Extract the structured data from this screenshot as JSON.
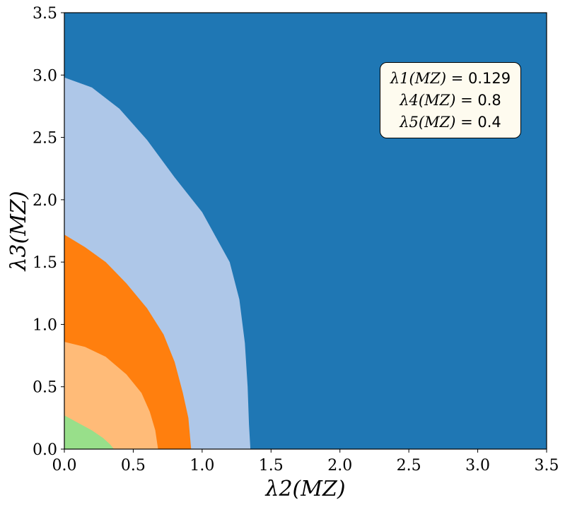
{
  "chart_data": {
    "type": "area",
    "xlabel": "λ2(MZ)",
    "ylabel": "λ3(MZ)",
    "xlim": [
      0,
      3.5
    ],
    "ylim": [
      0,
      3.5
    ],
    "x_ticks": [
      "0.0",
      "0.5",
      "1.0",
      "1.5",
      "2.0",
      "2.5",
      "3.0",
      "3.5"
    ],
    "y_ticks": [
      "0.0",
      "0.5",
      "1.0",
      "1.5",
      "2.0",
      "2.5",
      "3.0",
      "3.5"
    ],
    "grid": false,
    "background_color": "#1f77b4",
    "regions": [
      {
        "color": "#aec7e8",
        "boundary": [
          [
            0,
            2.98
          ],
          [
            0.2,
            2.9
          ],
          [
            0.4,
            2.73
          ],
          [
            0.6,
            2.48
          ],
          [
            0.8,
            2.18
          ],
          [
            1.0,
            1.9
          ],
          [
            1.1,
            1.7
          ],
          [
            1.2,
            1.5
          ],
          [
            1.27,
            1.2
          ],
          [
            1.31,
            0.85
          ],
          [
            1.33,
            0.5
          ],
          [
            1.34,
            0.2
          ],
          [
            1.35,
            0
          ]
        ]
      },
      {
        "color": "#ff7f0e",
        "boundary": [
          [
            0,
            1.72
          ],
          [
            0.15,
            1.62
          ],
          [
            0.3,
            1.5
          ],
          [
            0.45,
            1.33
          ],
          [
            0.6,
            1.13
          ],
          [
            0.72,
            0.92
          ],
          [
            0.8,
            0.7
          ],
          [
            0.86,
            0.45
          ],
          [
            0.9,
            0.25
          ],
          [
            0.92,
            0
          ]
        ]
      },
      {
        "color": "#ffbb78",
        "boundary": [
          [
            0,
            0.86
          ],
          [
            0.15,
            0.82
          ],
          [
            0.3,
            0.74
          ],
          [
            0.45,
            0.6
          ],
          [
            0.56,
            0.45
          ],
          [
            0.62,
            0.3
          ],
          [
            0.66,
            0.15
          ],
          [
            0.68,
            0
          ]
        ]
      },
      {
        "color": "#98df8a",
        "boundary": [
          [
            0,
            0.27
          ],
          [
            0.1,
            0.21
          ],
          [
            0.2,
            0.15
          ],
          [
            0.28,
            0.09
          ],
          [
            0.33,
            0.04
          ],
          [
            0.36,
            0
          ]
        ]
      }
    ],
    "annotation": {
      "lines": [
        {
          "name": "λ1(MZ)",
          "value": "0.129"
        },
        {
          "name": "λ4(MZ)",
          "value": "0.8"
        },
        {
          "name": "λ5(MZ)",
          "value": "0.4"
        }
      ],
      "placement": "top-right"
    }
  }
}
